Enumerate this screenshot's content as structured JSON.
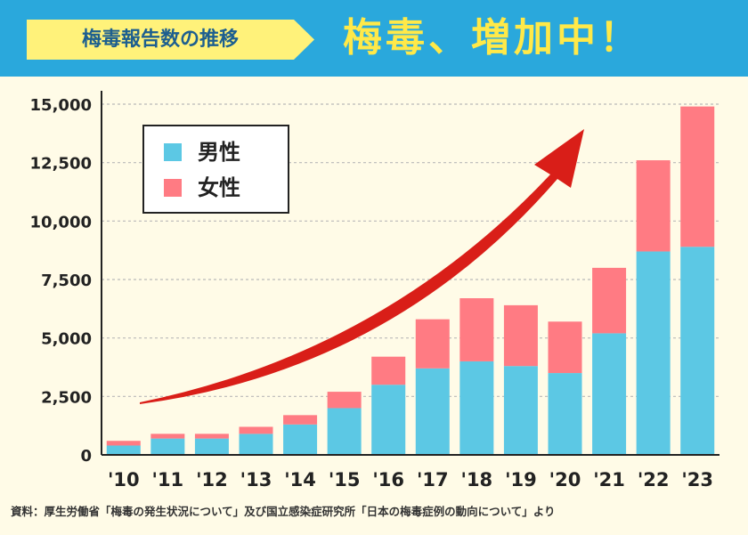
{
  "header": {
    "badge": "梅毒報告数の推移",
    "headline": "梅毒、増加中！",
    "badge_color": "#fff27a",
    "background_color": "#2aa8dc"
  },
  "legend": [
    {
      "label": "男性",
      "color": "#5cc8e4"
    },
    {
      "label": "女性",
      "color": "#ff7b83"
    }
  ],
  "chart_data": {
    "type": "bar",
    "stacked": true,
    "categories": [
      "'10",
      "'11",
      "'12",
      "'13",
      "'14",
      "'15",
      "'16",
      "'17",
      "'18",
      "'19",
      "'20",
      "'21",
      "'22",
      "'23"
    ],
    "series": [
      {
        "name": "男性",
        "color": "#5cc8e4",
        "values": [
          400,
          700,
          700,
          900,
          1300,
          2000,
          3000,
          3700,
          4000,
          3800,
          3500,
          5200,
          8700,
          8900
        ]
      },
      {
        "name": "女性",
        "color": "#ff7b83",
        "values": [
          200,
          200,
          200,
          300,
          400,
          700,
          1200,
          2100,
          2700,
          2600,
          2200,
          2800,
          3900,
          6000
        ]
      }
    ],
    "yticks": [
      0,
      2500,
      5000,
      7500,
      10000,
      12500,
      15000
    ],
    "ytick_labels": [
      "0",
      "2,500",
      "5,000",
      "7,500",
      "10,000",
      "12,500",
      "15,000"
    ],
    "ylim": [
      0,
      15000
    ],
    "grid": true,
    "legend_position": "top-left",
    "annotation": "rising arrow"
  },
  "source": "資料：厚生労働省「梅毒の発生状況について」及び国立感染症研究所「日本の梅毒症例の動向について」より"
}
